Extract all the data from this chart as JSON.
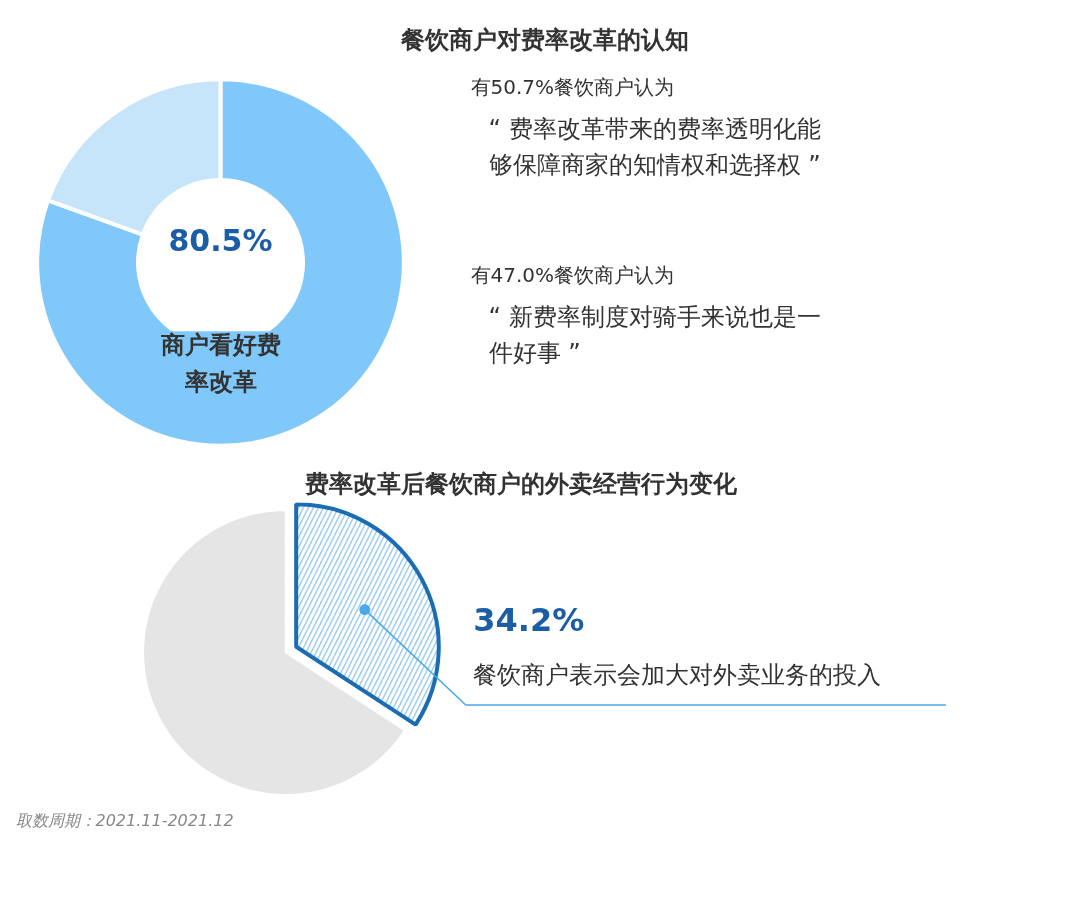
{
  "chart_data": [
    {
      "type": "donut",
      "title": "餐饮商户对费率改革的认知",
      "categories": [
        "商户看好费率改革",
        null
      ],
      "values": [
        80.5,
        19.5
      ],
      "colors": [
        "#80c8f9",
        "#c6e5fb"
      ],
      "value_labels": [
        "80.5%",
        null
      ]
    },
    {
      "type": "other",
      "annotations": [
        "有50.7%餐饮商户认为",
        "“ 费率改革带来的费率透明化能够保障商家的知情权和选择权 ”",
        "有47.0%餐饮商户认为",
        "“ 新费率制度对骑手来说也是一件好事 ”"
      ]
    },
    {
      "type": "pie",
      "title": "费率改革后餐饮商户的外卖经营行为变化",
      "categories": [
        "餐饮商户表示会加大对外卖业务的投入",
        null
      ],
      "values": [
        34.2,
        65.8
      ],
      "colors": [
        "#9ccdf2",
        "#e5e5e5"
      ],
      "value_labels": [
        "34.2%",
        null
      ],
      "annotations": [
        "取数周期：2021.11-2021.12"
      ]
    }
  ]
}
